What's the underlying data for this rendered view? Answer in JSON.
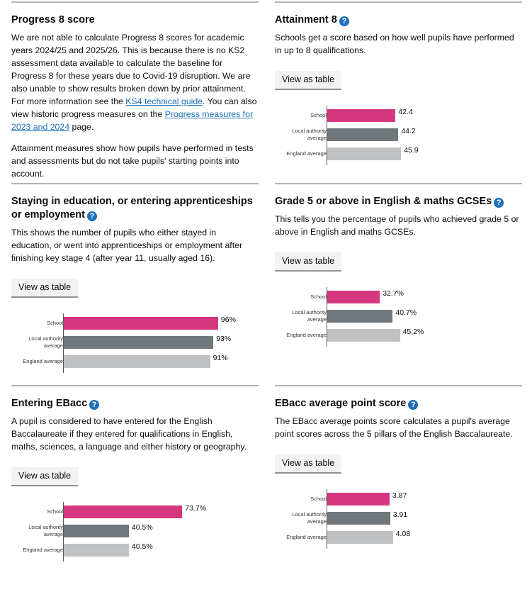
{
  "colors": {
    "school": "#d53880",
    "la": "#6f777b",
    "england": "#bfc1c3"
  },
  "button_label": "View as table",
  "row_labels": {
    "school": "School",
    "la": "Local authority average",
    "england": "England average"
  },
  "progress8": {
    "title": "Progress 8 score",
    "p1_a": "We are not able to calculate Progress 8 scores for academic years 2024/25 and 2025/26. This is because there is no KS2 assessment data available to calculate the baseline for Progress 8 for these years due to Covid-19 disruption. We are also unable to show results broken down by prior attainment. For more information see the ",
    "link1": "KS4 technical guide",
    "p1_b": ". You can also view historic progress measures on the ",
    "link2": "Progress measures for 2023 and 2024",
    "p1_c": " page.",
    "p2": "Attainment measures show how pupils have performed in tests and assessments but do not take pupils' starting points into account."
  },
  "chart_data": [
    {
      "type": "bar",
      "id": "attainment8",
      "title": "Attainment 8",
      "desc": "Schools get a score based on how well pupils have performed in up to 8 qualifications.",
      "max": 100,
      "categories": [
        "School",
        "Local authority average",
        "England average"
      ],
      "values": [
        42.4,
        44.2,
        45.9
      ],
      "labels": [
        "42.4",
        "44.2",
        "45.9"
      ]
    },
    {
      "type": "bar",
      "id": "staying",
      "title": "Staying in education, or entering apprenticeships or employment",
      "desc": "This shows the number of pupils who either stayed in education, or went into apprenticeships or employment after finishing key stage 4 (after year 11, usually aged 16).",
      "max": 100,
      "categories": [
        "School",
        "Local authority average",
        "England average"
      ],
      "values": [
        96,
        93,
        91
      ],
      "labels": [
        "96%",
        "93%",
        "91%"
      ]
    },
    {
      "type": "bar",
      "id": "grade5",
      "title": "Grade 5 or above in English & maths GCSEs",
      "desc": "This tells you the percentage of pupils who achieved grade 5 or above in English and maths GCSEs.",
      "max": 100,
      "categories": [
        "School",
        "Local authority average",
        "England average"
      ],
      "values": [
        32.7,
        40.7,
        45.2
      ],
      "labels": [
        "32.7%",
        "40.7%",
        "45.2%"
      ]
    },
    {
      "type": "bar",
      "id": "ebacc-entry",
      "title": "Entering EBacc",
      "desc": "A pupil is considered to have entered for the English Baccalaureate if they entered for qualifications in English, maths, sciences, a language and either history or geography.",
      "max": 100,
      "categories": [
        "School",
        "Local authority average",
        "England average"
      ],
      "values": [
        73.7,
        40.5,
        40.5
      ],
      "labels": [
        "73.7%",
        "40.5%",
        "40.5%"
      ]
    },
    {
      "type": "bar",
      "id": "ebacc-aps",
      "title": "EBacc average point score",
      "desc": "The EBacc average points score calculates a pupil's average point scores across the 5 pillars of the English Baccalaureate.",
      "max": 10,
      "categories": [
        "School",
        "Local authority average",
        "England average"
      ],
      "values": [
        3.87,
        3.91,
        4.08
      ],
      "labels": [
        "3.87",
        "3.91",
        "4.08"
      ]
    }
  ]
}
